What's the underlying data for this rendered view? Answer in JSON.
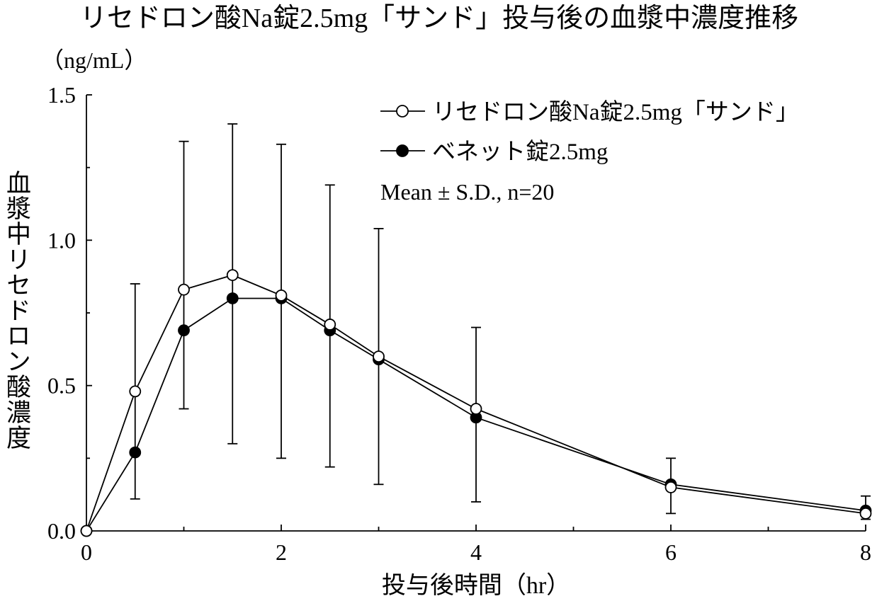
{
  "chart_data": {
    "type": "line",
    "title": "リセドロン酸Na錠2.5mg「サンド」投与後の血漿中濃度推移",
    "unit_label": "（ng/mL）",
    "xlabel": "投与後時間（hr）",
    "ylabel": "血漿中リセドロン酸濃度",
    "xlim": [
      0,
      8
    ],
    "ylim": [
      0,
      1.5
    ],
    "x_ticks": [
      {
        "value": 0,
        "label": "0"
      },
      {
        "value": 2,
        "label": "2"
      },
      {
        "value": 4,
        "label": "4"
      },
      {
        "value": 6,
        "label": "6"
      },
      {
        "value": 8,
        "label": "8"
      }
    ],
    "x_minor_ticks": [
      1,
      3,
      5,
      7
    ],
    "y_ticks": [
      {
        "value": 0,
        "label": "0.0"
      },
      {
        "value": 0.5,
        "label": "0.5"
      },
      {
        "value": 1.0,
        "label": "1.0"
      },
      {
        "value": 1.5,
        "label": "1.5"
      }
    ],
    "y_minor_ticks": [
      0.25,
      0.75,
      1.25
    ],
    "x": [
      0,
      0.5,
      1,
      1.5,
      2,
      2.5,
      3,
      4,
      6,
      8
    ],
    "series": [
      {
        "name": "リセドロン酸Na錠2.5mg「サンド」",
        "marker": "open-circle",
        "values": [
          0,
          0.48,
          0.83,
          0.88,
          0.81,
          0.71,
          0.6,
          0.42,
          0.15,
          0.06
        ],
        "sd_upper": [
          null,
          0.37,
          0.51,
          0.52,
          0.52,
          0.48,
          0.44,
          0.28,
          0.1,
          0.06
        ]
      },
      {
        "name": "ベネット錠2.5mg",
        "marker": "filled-circle",
        "values": [
          0,
          0.27,
          0.69,
          0.8,
          0.8,
          0.69,
          0.59,
          0.39,
          0.16,
          0.07
        ],
        "sd_lower": [
          null,
          0.16,
          0.27,
          0.5,
          0.55,
          0.47,
          0.43,
          0.29,
          0.1,
          0.03
        ]
      }
    ],
    "annotation": "Mean ± S.D., n=20",
    "legend_position": "top-right",
    "grid": false
  },
  "colors": {
    "ink": "#000000",
    "background": "#ffffff",
    "open_marker_fill": "#ffffff"
  }
}
